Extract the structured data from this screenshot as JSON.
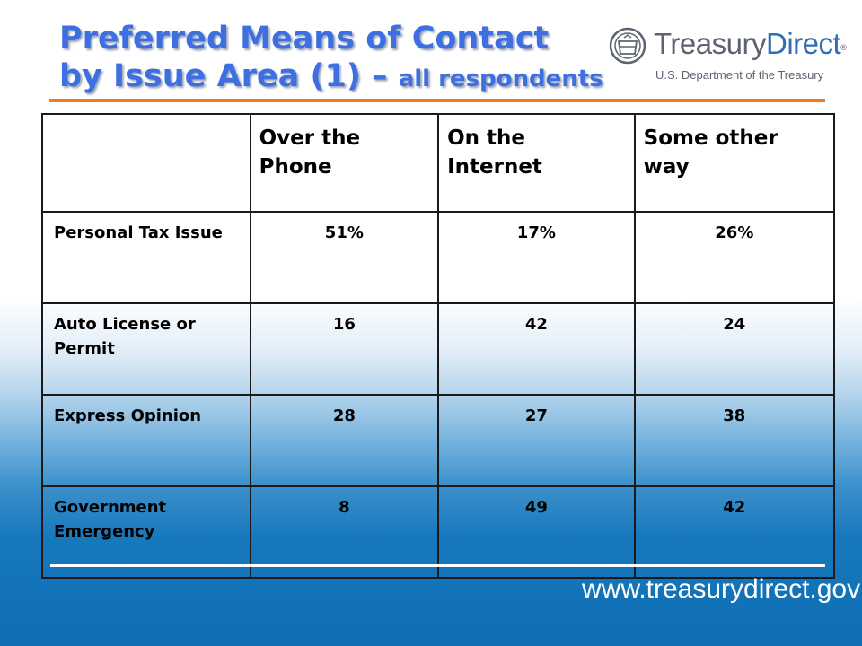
{
  "title": {
    "line1": "Preferred Means of Contact",
    "line2_main": "by Issue Area (1) – ",
    "line2_small": "all respondents"
  },
  "logo": {
    "brand_part1": "Treasury",
    "brand_part2": "Direct",
    "trademark": "®",
    "subtitle": "U.S. Department of the Treasury",
    "icon": "treasury-seal-icon"
  },
  "table": {
    "columns": [
      "",
      "Over the Phone",
      "On the Internet",
      "Some other way"
    ],
    "rows": [
      {
        "label": "Personal Tax Issue",
        "values": [
          "51%",
          "17%",
          "26%"
        ]
      },
      {
        "label": "Auto License or Permit",
        "values": [
          "16",
          "42",
          "24"
        ]
      },
      {
        "label": "Express Opinion",
        "values": [
          "28",
          "27",
          "38"
        ]
      },
      {
        "label": "Government Emergency",
        "values": [
          "8",
          "49",
          "42"
        ]
      }
    ]
  },
  "footer": {
    "url": "www.treasurydirect.gov"
  },
  "colors": {
    "title": "#3d6fe0",
    "accent_rule": "#f07a1c",
    "brand_blue": "#2f6fb3",
    "background_bottom": "#0f6eb4"
  }
}
